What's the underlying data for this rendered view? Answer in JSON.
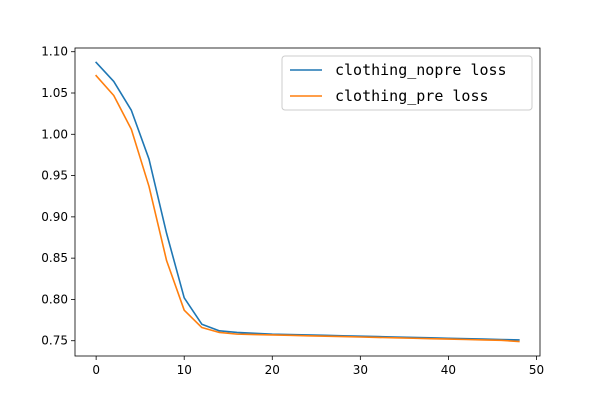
{
  "chart_data": {
    "type": "line",
    "title": "",
    "xlabel": "",
    "ylabel": "",
    "xlim": [
      -2.4,
      50.4
    ],
    "ylim": [
      0.7315,
      1.1045
    ],
    "x_ticks": [
      0,
      10,
      20,
      30,
      40,
      50
    ],
    "y_ticks": [
      0.75,
      0.8,
      0.85,
      0.9,
      0.95,
      1.0,
      1.05,
      1.1
    ],
    "x_tick_labels": [
      "0",
      "10",
      "20",
      "30",
      "40",
      "50"
    ],
    "y_tick_labels": [
      "0.75",
      "0.80",
      "0.85",
      "0.90",
      "0.95",
      "1.00",
      "1.05",
      "1.10"
    ],
    "grid": false,
    "legend_position": "upper right",
    "x": [
      0,
      2,
      4,
      6,
      8,
      10,
      12,
      14,
      16,
      18,
      20,
      22,
      24,
      26,
      28,
      30,
      32,
      34,
      36,
      38,
      40,
      42,
      44,
      46,
      48
    ],
    "series": [
      {
        "name": "clothing_nopre loss",
        "color": "#1f77b4",
        "values": [
          1.087,
          1.064,
          1.029,
          0.97,
          0.88,
          0.802,
          0.77,
          0.762,
          0.76,
          0.759,
          0.758,
          0.7575,
          0.757,
          0.7565,
          0.756,
          0.7555,
          0.755,
          0.7545,
          0.754,
          0.7535,
          0.753,
          0.7525,
          0.752,
          0.7515,
          0.751
        ]
      },
      {
        "name": "clothing_pre loss",
        "color": "#ff7f0e",
        "values": [
          1.071,
          1.047,
          1.006,
          0.937,
          0.847,
          0.787,
          0.766,
          0.76,
          0.758,
          0.7575,
          0.757,
          0.7565,
          0.756,
          0.7555,
          0.755,
          0.7545,
          0.754,
          0.7535,
          0.753,
          0.7525,
          0.752,
          0.7515,
          0.751,
          0.7505,
          0.749
        ]
      }
    ]
  }
}
